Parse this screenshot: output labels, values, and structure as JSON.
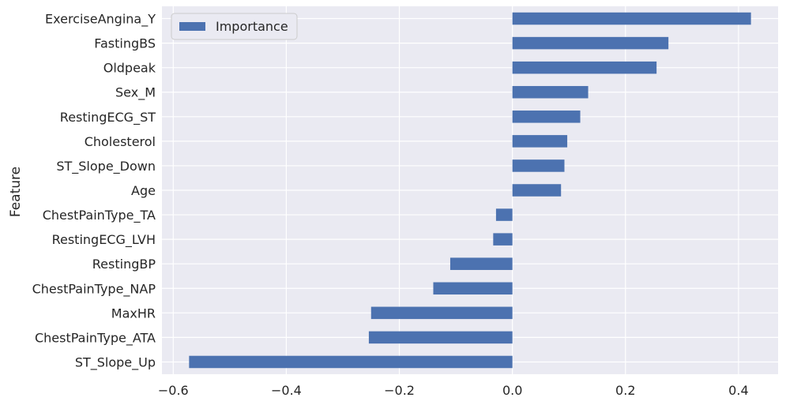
{
  "chart_data": {
    "type": "bar",
    "orientation": "horizontal",
    "title": "",
    "xlabel": "",
    "ylabel": "Feature",
    "xlim": [
      -0.62,
      0.47
    ],
    "x_ticks": [
      "−0.6",
      "−0.4",
      "−0.2",
      "0.0",
      "0.2",
      "0.4"
    ],
    "x_tick_values": [
      -0.6,
      -0.4,
      -0.2,
      0.0,
      0.2,
      0.4
    ],
    "grid": true,
    "legend_position": "top-left",
    "bar_color": "#4c72b0",
    "background_color": "#eaeaf2",
    "categories": [
      "ExerciseAngina_Y",
      "FastingBS",
      "Oldpeak",
      "Sex_M",
      "RestingECG_ST",
      "Cholesterol",
      "ST_Slope_Down",
      "Age",
      "ChestPainType_TA",
      "RestingECG_LVH",
      "RestingBP",
      "ChestPainType_NAP",
      "MaxHR",
      "ChestPainType_ATA",
      "ST_Slope_Up"
    ],
    "series": [
      {
        "name": "Importance",
        "values": [
          0.422,
          0.276,
          0.255,
          0.134,
          0.12,
          0.097,
          0.092,
          0.086,
          -0.029,
          -0.034,
          -0.11,
          -0.14,
          -0.25,
          -0.254,
          -0.572
        ]
      }
    ]
  }
}
